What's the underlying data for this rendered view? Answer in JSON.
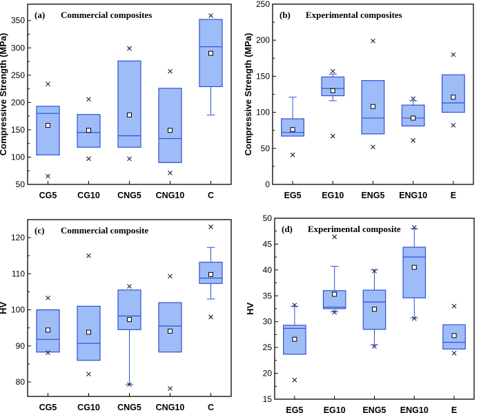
{
  "colors": {
    "box_fill": "#9ebcf7",
    "box_stroke": "#2f4fd6",
    "frame": "#000000"
  },
  "chart_data": [
    {
      "panel_label": "(a)",
      "title": "Commercial composites",
      "type": "box",
      "ylabel": "Compressive Strength (MPa)",
      "xlabel": "",
      "ylim": [
        50,
        380
      ],
      "yticks": [
        50,
        100,
        150,
        200,
        250,
        300,
        350
      ],
      "categories": [
        "CG5",
        "CG10",
        "CNG5",
        "CNG10",
        "C"
      ],
      "boxes": [
        {
          "whislo": 104,
          "q1": 104,
          "med": 180,
          "q3": 193,
          "whishi": 193,
          "mean": 158,
          "fliers": [
            65,
            234
          ]
        },
        {
          "whislo": 118,
          "q1": 118,
          "med": 145,
          "q3": 178,
          "whishi": 178,
          "mean": 149,
          "fliers": [
            97,
            206
          ]
        },
        {
          "whislo": 118,
          "q1": 118,
          "med": 139,
          "q3": 276,
          "whishi": 276,
          "mean": 177,
          "fliers": [
            97,
            299
          ]
        },
        {
          "whislo": 90,
          "q1": 90,
          "med": 134,
          "q3": 226,
          "whishi": 226,
          "mean": 149,
          "fliers": [
            71,
            257
          ]
        },
        {
          "whislo": 177,
          "q1": 229,
          "med": 302,
          "q3": 352,
          "whishi": 352,
          "mean": 290,
          "fliers": [
            359
          ]
        }
      ]
    },
    {
      "panel_label": "(b)",
      "title": "Experimental composites",
      "type": "box",
      "ylabel": "Compressive Strength (MPa)",
      "xlabel": "",
      "ylim": [
        0,
        250
      ],
      "yticks": [
        0,
        50,
        100,
        150,
        200,
        250
      ],
      "categories": [
        "EG5",
        "EG10",
        "ENG5",
        "ENG10",
        "E"
      ],
      "boxes": [
        {
          "whislo": 67,
          "q1": 67,
          "med": 72,
          "q3": 91,
          "whishi": 121,
          "mean": 76,
          "fliers": [
            41
          ]
        },
        {
          "whislo": 116,
          "q1": 123,
          "med": 133,
          "q3": 149,
          "whishi": 153,
          "mean": 130,
          "fliers": [
            67,
            157
          ]
        },
        {
          "whislo": 70,
          "q1": 70,
          "med": 92,
          "q3": 144,
          "whishi": 144,
          "mean": 108,
          "fliers": [
            52,
            199
          ]
        },
        {
          "whislo": 81,
          "q1": 81,
          "med": 92,
          "q3": 110,
          "whishi": 116,
          "mean": 92,
          "fliers": [
            61,
            119
          ]
        },
        {
          "whislo": 100,
          "q1": 100,
          "med": 113,
          "q3": 152,
          "whishi": 152,
          "mean": 121,
          "fliers": [
            82,
            180
          ]
        }
      ]
    },
    {
      "panel_label": "(c)",
      "title": "Commercial composite",
      "type": "box",
      "ylabel": "HV",
      "xlabel": "",
      "ylim": [
        76,
        125
      ],
      "yticks": [
        80,
        90,
        100,
        110,
        120
      ],
      "categories": [
        "CG5",
        "CG10",
        "CNG5",
        "CNG10",
        "C"
      ],
      "boxes": [
        {
          "whislo": 88.3,
          "q1": 88.3,
          "med": 91.8,
          "q3": 100,
          "whishi": 100,
          "mean": 94.4,
          "fliers": [
            88.1,
            103.3
          ]
        },
        {
          "whislo": 86,
          "q1": 86,
          "med": 90.7,
          "q3": 101,
          "whishi": 101,
          "mean": 93.8,
          "fliers": [
            82.2,
            115
          ]
        },
        {
          "whislo": 79.3,
          "q1": 94.5,
          "med": 98.3,
          "q3": 105.5,
          "whishi": 105.5,
          "mean": 97.3,
          "fliers": [
            79.3,
            106.5
          ]
        },
        {
          "whislo": 88.3,
          "q1": 88.3,
          "med": 95.5,
          "q3": 102,
          "whishi": 102,
          "mean": 94.1,
          "fliers": [
            78.2,
            109.3
          ]
        },
        {
          "whislo": 103,
          "q1": 107.3,
          "med": 108.8,
          "q3": 113.2,
          "whishi": 117.3,
          "mean": 109.8,
          "fliers": [
            98,
            123
          ]
        }
      ]
    },
    {
      "panel_label": "(d)",
      "title": "Experimental composite",
      "type": "box",
      "ylabel": "HV",
      "xlabel": "",
      "ylim": [
        15,
        50
      ],
      "yticks": [
        15,
        20,
        25,
        30,
        35,
        40,
        45,
        50
      ],
      "categories": [
        "EG5",
        "EG10",
        "ENG5",
        "ENG10",
        "E"
      ],
      "boxes": [
        {
          "whislo": 23.7,
          "q1": 23.7,
          "med": 28.7,
          "q3": 29.3,
          "whishi": 33,
          "mean": 26.6,
          "fliers": [
            18.7,
            33.2
          ]
        },
        {
          "whislo": 31.9,
          "q1": 32.5,
          "med": 32.8,
          "q3": 36,
          "whishi": 40.7,
          "mean": 35.3,
          "fliers": [
            31.8,
            46.4
          ]
        },
        {
          "whislo": 25.5,
          "q1": 28.5,
          "med": 33.8,
          "q3": 36.1,
          "whishi": 40,
          "mean": 32.4,
          "fliers": [
            25.2,
            39.8
          ]
        },
        {
          "whislo": 30.7,
          "q1": 34.6,
          "med": 42.5,
          "q3": 44.4,
          "whishi": 48,
          "mean": 40.5,
          "fliers": [
            30.6,
            48.2
          ]
        },
        {
          "whislo": 24.7,
          "q1": 24.7,
          "med": 26,
          "q3": 29.4,
          "whishi": 29.4,
          "mean": 27.3,
          "fliers": [
            23.9,
            33
          ]
        }
      ]
    }
  ]
}
